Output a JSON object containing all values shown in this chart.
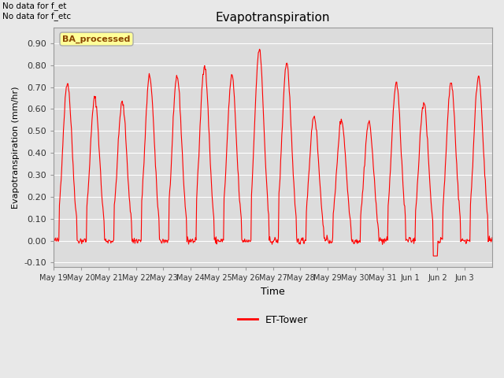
{
  "title": "Evapotranspiration",
  "ylabel": "Evapotranspiration (mm/hr)",
  "xlabel": "Time",
  "ylim": [
    -0.12,
    0.97
  ],
  "yticks": [
    -0.1,
    0.0,
    0.1,
    0.2,
    0.3,
    0.4,
    0.5,
    0.6,
    0.7,
    0.8,
    0.9
  ],
  "annotation_top": "No data for f_et\nNo data for f_etc",
  "box_label": "BA_processed",
  "legend_label": "ET-Tower",
  "line_color": "#FF0000",
  "bg_color": "#E8E8E8",
  "plot_bg_color": "#DCDCDC",
  "grid_color": "#FFFFFF",
  "x_tick_labels": [
    "May 19",
    "May 20",
    "May 21",
    "May 22",
    "May 23",
    "May 24",
    "May 25",
    "May 26",
    "May 27",
    "May 28",
    "May 29",
    "May 30",
    "May 31",
    "Jun 1",
    "Jun 2",
    "Jun 3"
  ],
  "n_days": 16,
  "seed": 42,
  "day_peaks": [
    0.72,
    0.65,
    0.63,
    0.75,
    0.75,
    0.8,
    0.75,
    0.87,
    0.81,
    0.57,
    0.55,
    0.54,
    0.72,
    0.63,
    0.72,
    0.75
  ]
}
